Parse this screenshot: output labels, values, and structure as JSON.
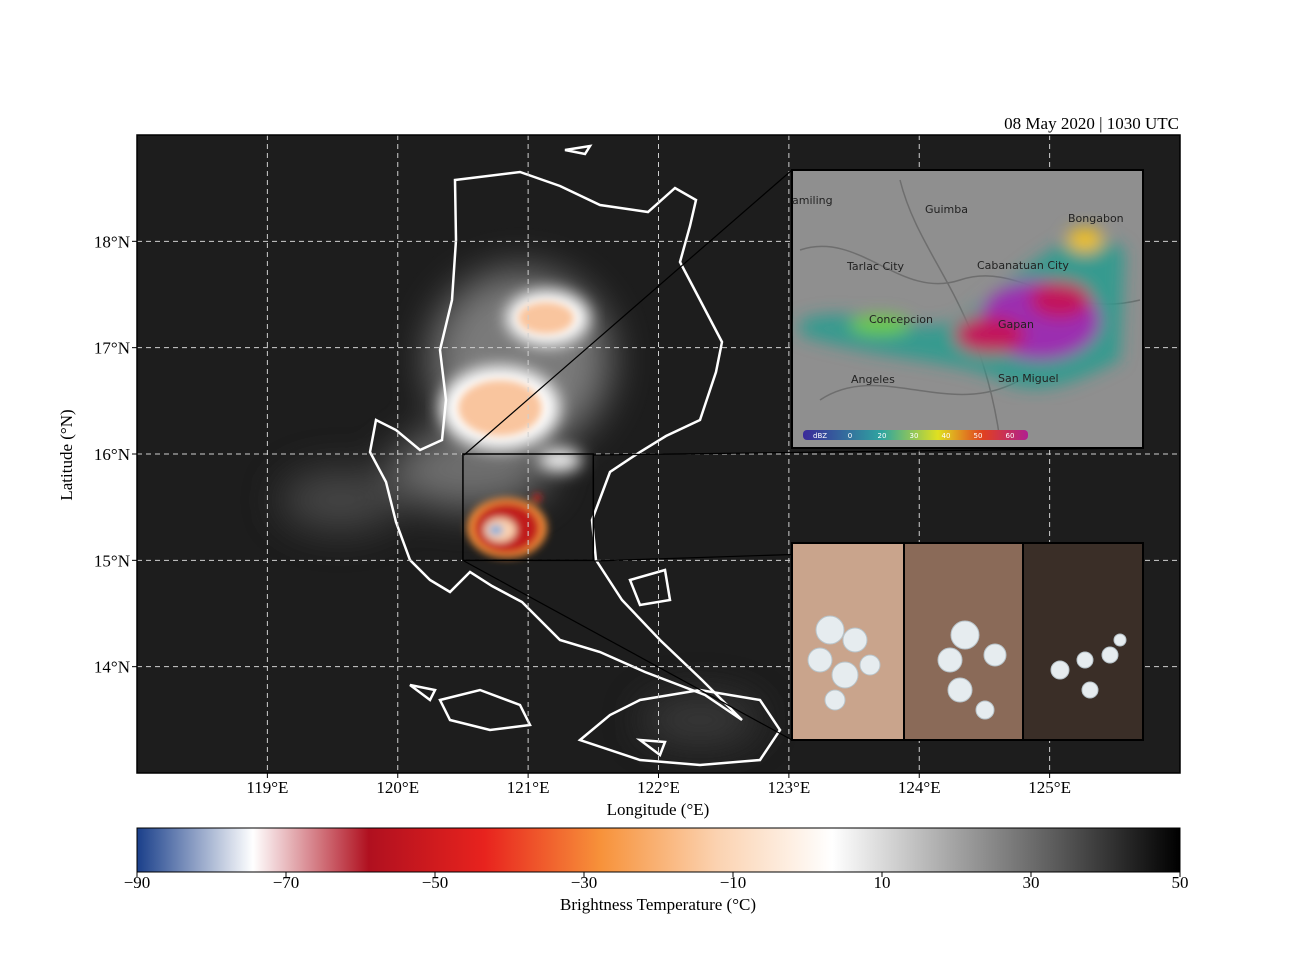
{
  "map": {
    "timestamp": "08 May 2020 | 1030 UTC",
    "xlabel": "Longitude (°E)",
    "ylabel": "Latitude (°N)",
    "xlim": [
      118,
      126
    ],
    "ylim": [
      13,
      19
    ],
    "xticks": [
      {
        "value": 119,
        "label": "119°E"
      },
      {
        "value": 120,
        "label": "120°E"
      },
      {
        "value": 121,
        "label": "121°E"
      },
      {
        "value": 122,
        "label": "122°E"
      },
      {
        "value": 123,
        "label": "123°E"
      },
      {
        "value": 124,
        "label": "124°E"
      },
      {
        "value": 125,
        "label": "125°E"
      }
    ],
    "yticks": [
      {
        "value": 14,
        "label": "14°N"
      },
      {
        "value": 15,
        "label": "15°N"
      },
      {
        "value": 16,
        "label": "16°N"
      },
      {
        "value": 17,
        "label": "17°N"
      },
      {
        "value": 18,
        "label": "18°N"
      }
    ],
    "grid": true,
    "study_area": {
      "lon": [
        120.5,
        121.5
      ],
      "lat": [
        15,
        16
      ]
    },
    "colorbar": {
      "label": "Brightness Temperature (°C)",
      "lim": [
        -90,
        50
      ],
      "ticks": [
        {
          "value": -90,
          "label": "−90"
        },
        {
          "value": -70,
          "label": "−70"
        },
        {
          "value": -50,
          "label": "−50"
        },
        {
          "value": -30,
          "label": "−30"
        },
        {
          "value": -10,
          "label": "−10"
        },
        10,
        30,
        50
      ],
      "colors": [
        "#1a3f8a",
        "#ffffff",
        "#b0101f",
        "#e8231e",
        "#f7923a",
        "#fbd2b0",
        "#ffffff",
        "#a8a8a8",
        "#555555",
        "#000000"
      ]
    },
    "radar": {
      "places": [
        "amiling",
        "Guimba",
        "Bongabon",
        "Tarlac City",
        "Cabanatuan City",
        "Concepcion",
        "Gapan",
        "Angeles",
        "San Miguel"
      ],
      "legend_unit": "dBZ",
      "legend_ticks": [
        0,
        20,
        30,
        40,
        50,
        60
      ]
    }
  }
}
